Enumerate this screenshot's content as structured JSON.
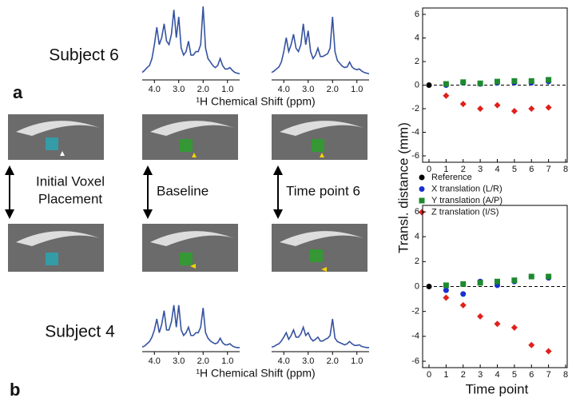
{
  "figure": {
    "subject_top": "Subject 6",
    "subject_bottom": "Subject 4",
    "panel_a": "a",
    "panel_b": "b",
    "row_label_1": "Initial Voxel",
    "row_label_2": "Placement",
    "baseline": "Baseline",
    "timepoint": "Time point 6"
  },
  "chart_data": [
    {
      "type": "scatter",
      "ylabel": "Transl. distance (mm)",
      "xlim": [
        0,
        8
      ],
      "ylim": [
        -6,
        6
      ],
      "xticks": [
        0,
        1,
        2,
        3,
        4,
        5,
        6,
        7,
        8
      ],
      "yticks": [
        -6,
        -4,
        -2,
        0,
        2,
        4,
        6
      ],
      "reference_line": 0,
      "series": [
        {
          "name": "Reference",
          "color": "#000000",
          "marker": "circle",
          "x": [
            0
          ],
          "values": [
            0
          ]
        },
        {
          "name": "X translation (L/R)",
          "color": "#1a2fd0",
          "marker": "circle",
          "x": [
            1,
            2,
            3,
            4,
            5,
            6,
            7
          ],
          "values": [
            0.0,
            0.2,
            0.1,
            0.2,
            0.2,
            0.2,
            0.3
          ]
        },
        {
          "name": "Y translation (A/P)",
          "color": "#1e8a2e",
          "marker": "square",
          "x": [
            1,
            2,
            3,
            4,
            5,
            6,
            7
          ],
          "values": [
            0.1,
            0.25,
            0.15,
            0.3,
            0.35,
            0.35,
            0.45
          ]
        },
        {
          "name": "Z translation (I/S)",
          "color": "#e0201c",
          "marker": "diamond",
          "x": [
            1,
            2,
            3,
            4,
            5,
            6,
            7
          ],
          "values": [
            -0.9,
            -1.6,
            -2.0,
            -1.7,
            -2.2,
            -2.0,
            -1.9
          ]
        }
      ]
    },
    {
      "type": "scatter",
      "xlabel": "Time point",
      "xlim": [
        0,
        8
      ],
      "ylim": [
        -6,
        6
      ],
      "xticks": [
        0,
        1,
        2,
        3,
        4,
        5,
        6,
        7,
        8
      ],
      "yticks": [
        -6,
        -4,
        -2,
        0,
        2,
        4,
        6
      ],
      "reference_line": 0,
      "series": [
        {
          "color": "#000000",
          "marker": "circle",
          "x": [
            0
          ],
          "values": [
            0
          ]
        },
        {
          "color": "#1a2fd0",
          "marker": "circle",
          "x": [
            1,
            2,
            3,
            4,
            5,
            6,
            7
          ],
          "values": [
            -0.3,
            -0.6,
            0.4,
            0.1,
            0.4,
            0.8,
            0.7
          ]
        },
        {
          "color": "#1e8a2e",
          "marker": "square",
          "x": [
            1,
            2,
            3,
            4,
            5,
            6,
            7
          ],
          "values": [
            0.1,
            0.2,
            0.3,
            0.4,
            0.5,
            0.8,
            0.8
          ]
        },
        {
          "color": "#e0201c",
          "marker": "diamond",
          "x": [
            1,
            2,
            3,
            4,
            5,
            6,
            7
          ],
          "values": [
            -0.9,
            -1.5,
            -2.4,
            -3.0,
            -3.3,
            -4.7,
            -5.2
          ]
        }
      ]
    },
    {
      "type": "line",
      "xlabel": "¹H Chemical Shift (ppm)",
      "color": "#3553a0",
      "xlim": [
        4.5,
        0.5
      ],
      "xticks": [
        {
          "value": 4,
          "label": "4.0"
        },
        {
          "value": 3,
          "label": "3.0"
        },
        {
          "value": 2,
          "label": "2.0"
        },
        {
          "value": 1,
          "label": "1.0"
        }
      ],
      "x": [
        4.5,
        4.4,
        4.3,
        4.2,
        4.1,
        4.0,
        3.9,
        3.8,
        3.7,
        3.6,
        3.5,
        3.4,
        3.3,
        3.2,
        3.1,
        3.0,
        2.9,
        2.8,
        2.7,
        2.6,
        2.5,
        2.4,
        2.3,
        2.2,
        2.1,
        2.0,
        1.9,
        1.8,
        1.7,
        1.6,
        1.5,
        1.4,
        1.3,
        1.2,
        1.1,
        1.0,
        0.9,
        0.8,
        0.7,
        0.6,
        0.5
      ],
      "values": [
        0.05,
        0.08,
        0.12,
        0.15,
        0.25,
        0.45,
        0.7,
        0.45,
        0.55,
        0.75,
        0.5,
        0.45,
        0.6,
        0.95,
        0.55,
        0.85,
        0.4,
        0.3,
        0.35,
        0.5,
        0.3,
        0.3,
        0.35,
        0.35,
        0.45,
        1.0,
        0.4,
        0.25,
        0.2,
        0.15,
        0.12,
        0.15,
        0.25,
        0.15,
        0.1,
        0.1,
        0.12,
        0.08,
        0.05,
        0.04,
        0.03
      ]
    },
    {
      "type": "line",
      "color": "#3553a0",
      "xlim": [
        4.5,
        0.5
      ],
      "xticks": [
        {
          "value": 4,
          "label": "4.0"
        },
        {
          "value": 3,
          "label": "3.0"
        },
        {
          "value": 2,
          "label": "2.0"
        },
        {
          "value": 1,
          "label": "1.0"
        }
      ],
      "x": [
        4.5,
        4.4,
        4.3,
        4.2,
        4.1,
        4.0,
        3.9,
        3.8,
        3.7,
        3.6,
        3.5,
        3.4,
        3.3,
        3.2,
        3.1,
        3.0,
        2.9,
        2.8,
        2.7,
        2.6,
        2.5,
        2.4,
        2.3,
        2.2,
        2.1,
        2.0,
        1.9,
        1.8,
        1.7,
        1.6,
        1.5,
        1.4,
        1.3,
        1.2,
        1.1,
        1.0,
        0.9,
        0.8,
        0.7,
        0.6,
        0.5
      ],
      "values": [
        0.05,
        0.07,
        0.1,
        0.13,
        0.2,
        0.35,
        0.55,
        0.35,
        0.45,
        0.6,
        0.4,
        0.35,
        0.45,
        0.75,
        0.45,
        0.65,
        0.35,
        0.25,
        0.3,
        0.4,
        0.28,
        0.28,
        0.3,
        0.32,
        0.4,
        0.85,
        0.35,
        0.22,
        0.18,
        0.14,
        0.12,
        0.13,
        0.2,
        0.13,
        0.1,
        0.09,
        0.1,
        0.07,
        0.05,
        0.04,
        0.03
      ]
    },
    {
      "type": "line",
      "xlabel": "¹H Chemical Shift (ppm)",
      "color": "#3553a0",
      "xlim": [
        4.5,
        0.5
      ],
      "xticks": [
        {
          "value": 4,
          "label": "4.0"
        },
        {
          "value": 3,
          "label": "3.0"
        },
        {
          "value": 2,
          "label": "2.0"
        },
        {
          "value": 1,
          "label": "1.0"
        }
      ],
      "x": [
        4.5,
        4.4,
        4.3,
        4.2,
        4.1,
        4.0,
        3.9,
        3.8,
        3.7,
        3.6,
        3.5,
        3.4,
        3.3,
        3.2,
        3.1,
        3.0,
        2.9,
        2.8,
        2.7,
        2.6,
        2.5,
        2.4,
        2.3,
        2.2,
        2.1,
        2.0,
        1.9,
        1.8,
        1.7,
        1.6,
        1.5,
        1.4,
        1.3,
        1.2,
        1.1,
        1.0,
        0.9,
        0.8,
        0.7,
        0.6,
        0.5
      ],
      "values": [
        0.04,
        0.06,
        0.1,
        0.14,
        0.22,
        0.35,
        0.55,
        0.3,
        0.45,
        0.7,
        0.35,
        0.35,
        0.5,
        0.8,
        0.4,
        0.8,
        0.35,
        0.25,
        0.3,
        0.4,
        0.25,
        0.25,
        0.3,
        0.3,
        0.4,
        0.75,
        0.3,
        0.2,
        0.15,
        0.12,
        0.1,
        0.12,
        0.2,
        0.12,
        0.08,
        0.08,
        0.1,
        0.06,
        0.04,
        0.03,
        0.03
      ]
    },
    {
      "type": "line",
      "color": "#3553a0",
      "xlim": [
        4.5,
        0.5
      ],
      "xticks": [
        {
          "value": 4,
          "label": "4.0"
        },
        {
          "value": 3,
          "label": "3.0"
        },
        {
          "value": 2,
          "label": "2.0"
        },
        {
          "value": 1,
          "label": "1.0"
        }
      ],
      "x": [
        4.5,
        4.4,
        4.3,
        4.2,
        4.1,
        4.0,
        3.9,
        3.8,
        3.7,
        3.6,
        3.5,
        3.4,
        3.3,
        3.2,
        3.1,
        3.0,
        2.9,
        2.8,
        2.7,
        2.6,
        2.5,
        2.4,
        2.3,
        2.2,
        2.1,
        2.0,
        1.9,
        1.8,
        1.7,
        1.6,
        1.5,
        1.4,
        1.3,
        1.2,
        1.1,
        1.0,
        0.9,
        0.8,
        0.7,
        0.6,
        0.5
      ],
      "values": [
        0.04,
        0.05,
        0.08,
        0.1,
        0.15,
        0.22,
        0.3,
        0.18,
        0.25,
        0.35,
        0.22,
        0.22,
        0.28,
        0.4,
        0.25,
        0.3,
        0.2,
        0.15,
        0.18,
        0.22,
        0.15,
        0.15,
        0.18,
        0.2,
        0.25,
        0.55,
        0.2,
        0.14,
        0.12,
        0.1,
        0.08,
        0.1,
        0.14,
        0.1,
        0.07,
        0.07,
        0.08,
        0.05,
        0.04,
        0.03,
        0.03
      ]
    }
  ]
}
